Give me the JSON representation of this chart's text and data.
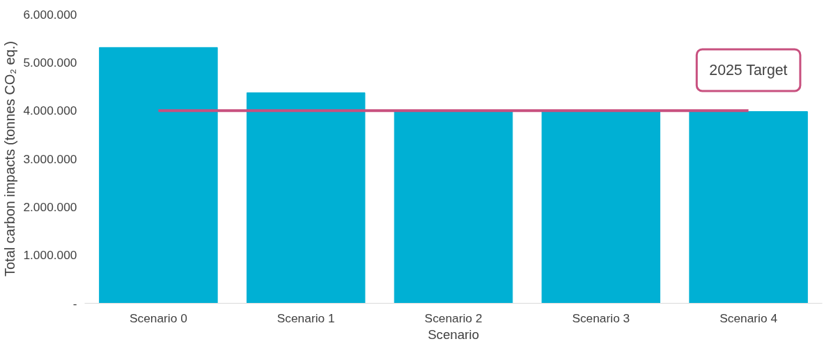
{
  "chart_data": {
    "type": "bar",
    "xlabel": "Scenario",
    "ylabel": "Total carbon impacts (tonnes CO₂ eq.)",
    "categories": [
      "Scenario 0",
      "Scenario 1",
      "Scenario 2",
      "Scenario 3",
      "Scenario 4"
    ],
    "values": [
      5310000,
      4370000,
      3990000,
      3990000,
      3980000
    ],
    "color": "#00b0d4",
    "ylim": [
      0,
      6000000
    ],
    "yticks": [
      {
        "value": 0,
        "label": "-"
      },
      {
        "value": 1000000,
        "label": "1.000.000"
      },
      {
        "value": 2000000,
        "label": "2.000.000"
      },
      {
        "value": 3000000,
        "label": "3.000.000"
      },
      {
        "value": 4000000,
        "label": "4.000.000"
      },
      {
        "value": 5000000,
        "label": "5.000.000"
      },
      {
        "value": 6000000,
        "label": "6.000.000"
      }
    ],
    "ref_lines": [
      {
        "axis": "y",
        "value": 4000000,
        "label": "2025 Target",
        "color": "#c8507f"
      }
    ],
    "grid": false
  }
}
